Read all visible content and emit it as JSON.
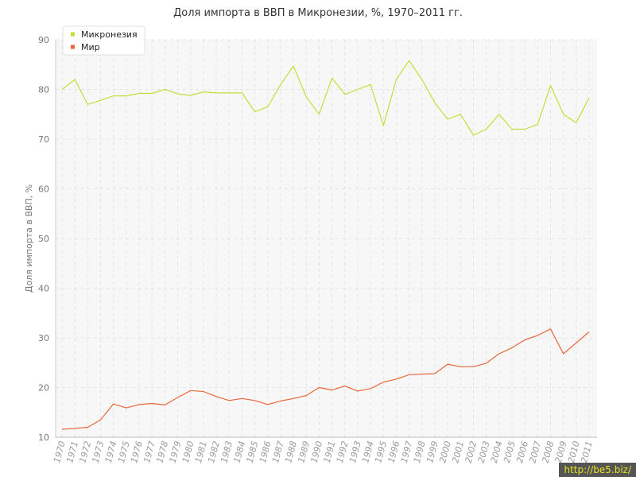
{
  "chart_data": {
    "type": "line",
    "title": "Доля импорта в ВВП в Микронезии, %, 1970–2011 гг.",
    "ylabel": "Доля импорта в ВВП, %",
    "xlabel": "",
    "ylim": [
      10,
      90
    ],
    "yticks": [
      10,
      20,
      30,
      40,
      50,
      60,
      70,
      80,
      90
    ],
    "grid": true,
    "legend_position": "top-left",
    "x": [
      "1970",
      "1971",
      "1972",
      "1973",
      "1974",
      "1975",
      "1976",
      "1977",
      "1978",
      "1979",
      "1980",
      "1981",
      "1982",
      "1983",
      "1984",
      "1985",
      "1986",
      "1987",
      "1988",
      "1989",
      "1990",
      "1991",
      "1992",
      "1993",
      "1994",
      "1995",
      "1996",
      "1997",
      "1998",
      "1999",
      "2000",
      "2001",
      "2002",
      "2003",
      "2004",
      "2005",
      "2006",
      "2007",
      "2008",
      "2009",
      "2010",
      "2011"
    ],
    "series": [
      {
        "name": "Микронезия",
        "color": "#c5dd3a",
        "values": [
          80.0,
          82.0,
          77.0,
          77.8,
          78.7,
          78.7,
          79.2,
          79.2,
          80.0,
          79.1,
          78.8,
          79.5,
          79.3,
          79.3,
          79.3,
          75.5,
          76.5,
          81.0,
          84.7,
          78.5,
          75.0,
          82.3,
          79.0,
          80.0,
          81.0,
          72.7,
          82.0,
          85.8,
          82.0,
          77.3,
          74.0,
          75.0,
          70.8,
          72.0,
          75.0,
          72.0,
          72.0,
          73.0,
          80.8,
          75.0,
          73.3,
          78.3
        ]
      },
      {
        "name": "Мир",
        "color": "#e8663a",
        "values": [
          11.6,
          11.8,
          12.0,
          13.5,
          16.7,
          15.9,
          16.6,
          16.8,
          16.5,
          18.0,
          19.4,
          19.2,
          18.2,
          17.4,
          17.8,
          17.4,
          16.6,
          17.3,
          17.8,
          18.4,
          20.0,
          19.5,
          20.3,
          19.3,
          19.8,
          21.1,
          21.7,
          22.6,
          22.7,
          22.8,
          24.7,
          24.2,
          24.2,
          24.9,
          26.8,
          28.0,
          29.6,
          30.5,
          31.8,
          26.8,
          29.0,
          31.2
        ]
      }
    ]
  },
  "watermark": "http://be5.biz/"
}
